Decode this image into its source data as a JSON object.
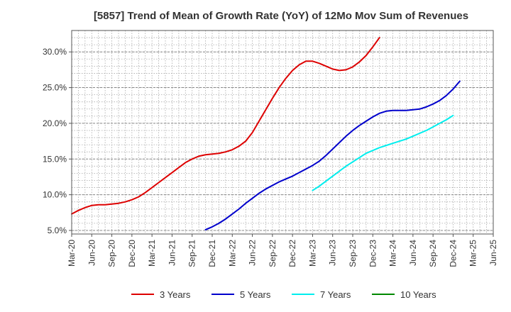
{
  "chart_data": {
    "type": "line",
    "title": "[5857]  Trend of Mean of Growth Rate (YoY) of 12Mo Mov Sum of Revenues",
    "xlabel": "",
    "ylabel": "",
    "ylim": [
      4.5,
      33.0
    ],
    "y_ticks": [
      5.0,
      10.0,
      15.0,
      20.0,
      25.0,
      30.0
    ],
    "y_tick_labels": [
      "5.0%",
      "10.0%",
      "15.0%",
      "20.0%",
      "25.0%",
      "30.0%"
    ],
    "x_tick_labels": [
      "Mar-20",
      "Jun-20",
      "Sep-20",
      "Dec-20",
      "Mar-21",
      "Jun-21",
      "Sep-21",
      "Dec-21",
      "Mar-22",
      "Jun-22",
      "Sep-22",
      "Dec-22",
      "Mar-23",
      "Jun-23",
      "Sep-23",
      "Dec-23",
      "Mar-24",
      "Jun-24",
      "Sep-24",
      "Dec-24",
      "Mar-25",
      "Jun-25"
    ],
    "grid": true,
    "legend_position": "bottom",
    "series": [
      {
        "name": "3 Years",
        "color": "#dd0000",
        "start_index": 0,
        "values": [
          7.3,
          7.8,
          8.2,
          8.5,
          8.6,
          8.6,
          8.7,
          8.8,
          9.0,
          9.3,
          9.7,
          10.3,
          11.0,
          11.7,
          12.4,
          13.1,
          13.8,
          14.5,
          15.0,
          15.4,
          15.6,
          15.7,
          15.8,
          16.0,
          16.3,
          16.8,
          17.5,
          18.7,
          20.3,
          21.9,
          23.5,
          25.0,
          26.3,
          27.4,
          28.2,
          28.7,
          28.7,
          28.4,
          28.0,
          27.6,
          27.4,
          27.5,
          27.9,
          28.6,
          29.5,
          30.7,
          32.0
        ]
      },
      {
        "name": "5 Years",
        "color": "#0000cc",
        "start_index": 20,
        "values": [
          5.1,
          5.5,
          6.0,
          6.6,
          7.3,
          8.0,
          8.8,
          9.5,
          10.2,
          10.8,
          11.3,
          11.8,
          12.2,
          12.6,
          13.1,
          13.6,
          14.1,
          14.7,
          15.5,
          16.4,
          17.3,
          18.2,
          19.0,
          19.7,
          20.3,
          20.9,
          21.4,
          21.7,
          21.8,
          21.8,
          21.8,
          21.9,
          22.0,
          22.3,
          22.7,
          23.2,
          23.9,
          24.8,
          25.9
        ]
      },
      {
        "name": "7 Years",
        "color": "#00eeee",
        "start_index": 36,
        "values": [
          10.6,
          11.2,
          11.9,
          12.6,
          13.3,
          14.0,
          14.6,
          15.2,
          15.8,
          16.2,
          16.6,
          16.9,
          17.2,
          17.5,
          17.8,
          18.2,
          18.6,
          19.0,
          19.5,
          20.0,
          20.5,
          21.1
        ]
      },
      {
        "name": "10 Years",
        "color": "#008800",
        "start_index": 0,
        "values": []
      }
    ]
  }
}
